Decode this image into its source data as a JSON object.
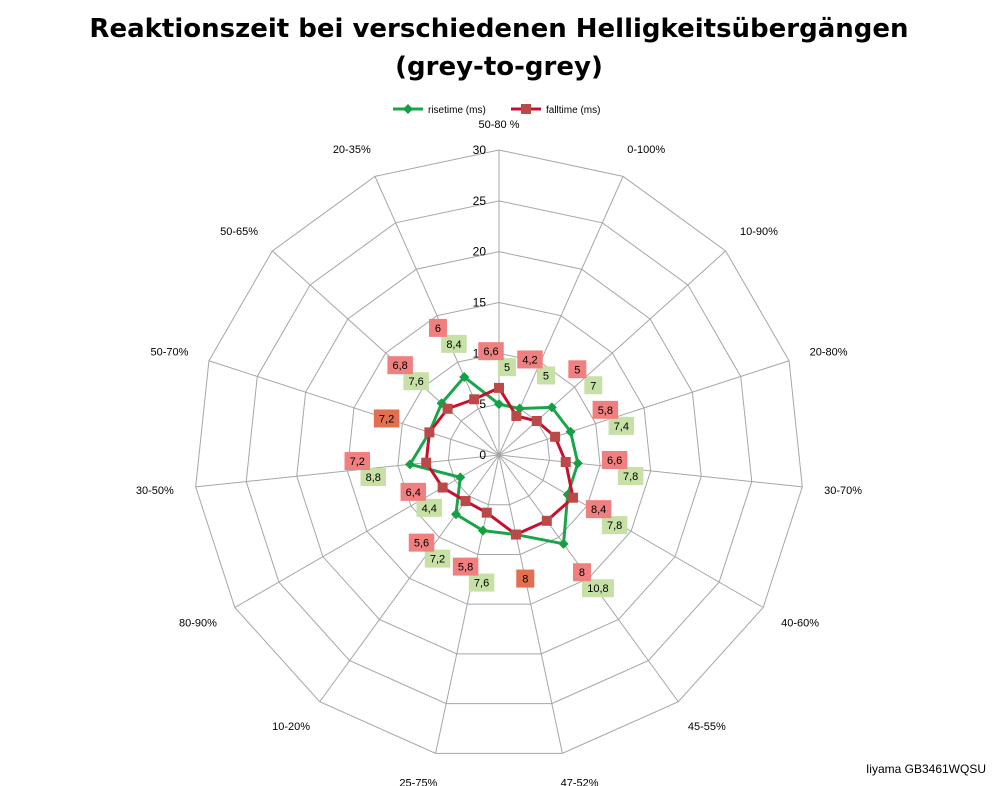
{
  "title_line1": "Reaktionszeit bei verschiedenen Helligkeitsübergängen",
  "title_line2": "(grey-to-grey)",
  "watermark": "Iiyama GB3461WQSU",
  "colors": {
    "rise": "#1aa54b",
    "fall": "#c8102e",
    "rise_marker": "#16a046",
    "fall_marker": "#b94a48",
    "rise_label_bg": "#c6e0a6",
    "fall_label_bg": "#f08080",
    "overlap_label_bg": "#e07050",
    "grid": "#a6a6a6"
  },
  "chart_data": {
    "type": "radar",
    "categories": [
      "50-80 %",
      "0-100%",
      "10-90%",
      "20-80%",
      "30-70%",
      "40-60%",
      "45-55%",
      "47-52%",
      "25-75%",
      "10-20%",
      "80-90%",
      "30-50%",
      "50-70%",
      "50-65%",
      "20-35%"
    ],
    "series": [
      {
        "name": "risetime (ms)",
        "values": [
          5,
          5,
          7,
          7.4,
          7.8,
          7.8,
          10.8,
          8,
          7.6,
          7.2,
          4.4,
          8.8,
          7.2,
          7.6,
          8.4
        ]
      },
      {
        "name": "falltime (ms)",
        "values": [
          6.6,
          4.2,
          5,
          5.8,
          6.6,
          8.4,
          8,
          8,
          5.8,
          5.6,
          6.4,
          7.2,
          7.2,
          6.8,
          6
        ]
      }
    ],
    "data_labels": {
      "rise": [
        "5",
        "5",
        "7",
        "7,4",
        "7,8",
        "7,8",
        "10,8",
        "8",
        "7,6",
        "7,2",
        "4,4",
        "8,8",
        "7,2",
        "7,6",
        "8,4"
      ],
      "fall": [
        "6,6",
        "4,2",
        "5",
        "5,8",
        "6,6",
        "8,4",
        "8",
        "8",
        "5,8",
        "5,6",
        "6,4",
        "7,2",
        "7,2",
        "6,8",
        "6"
      ]
    },
    "r_ticks": [
      "0",
      "5",
      "10",
      "15",
      "20",
      "25",
      "30"
    ],
    "rlim": [
      0,
      30
    ],
    "grid": true,
    "legend_position": "top"
  }
}
